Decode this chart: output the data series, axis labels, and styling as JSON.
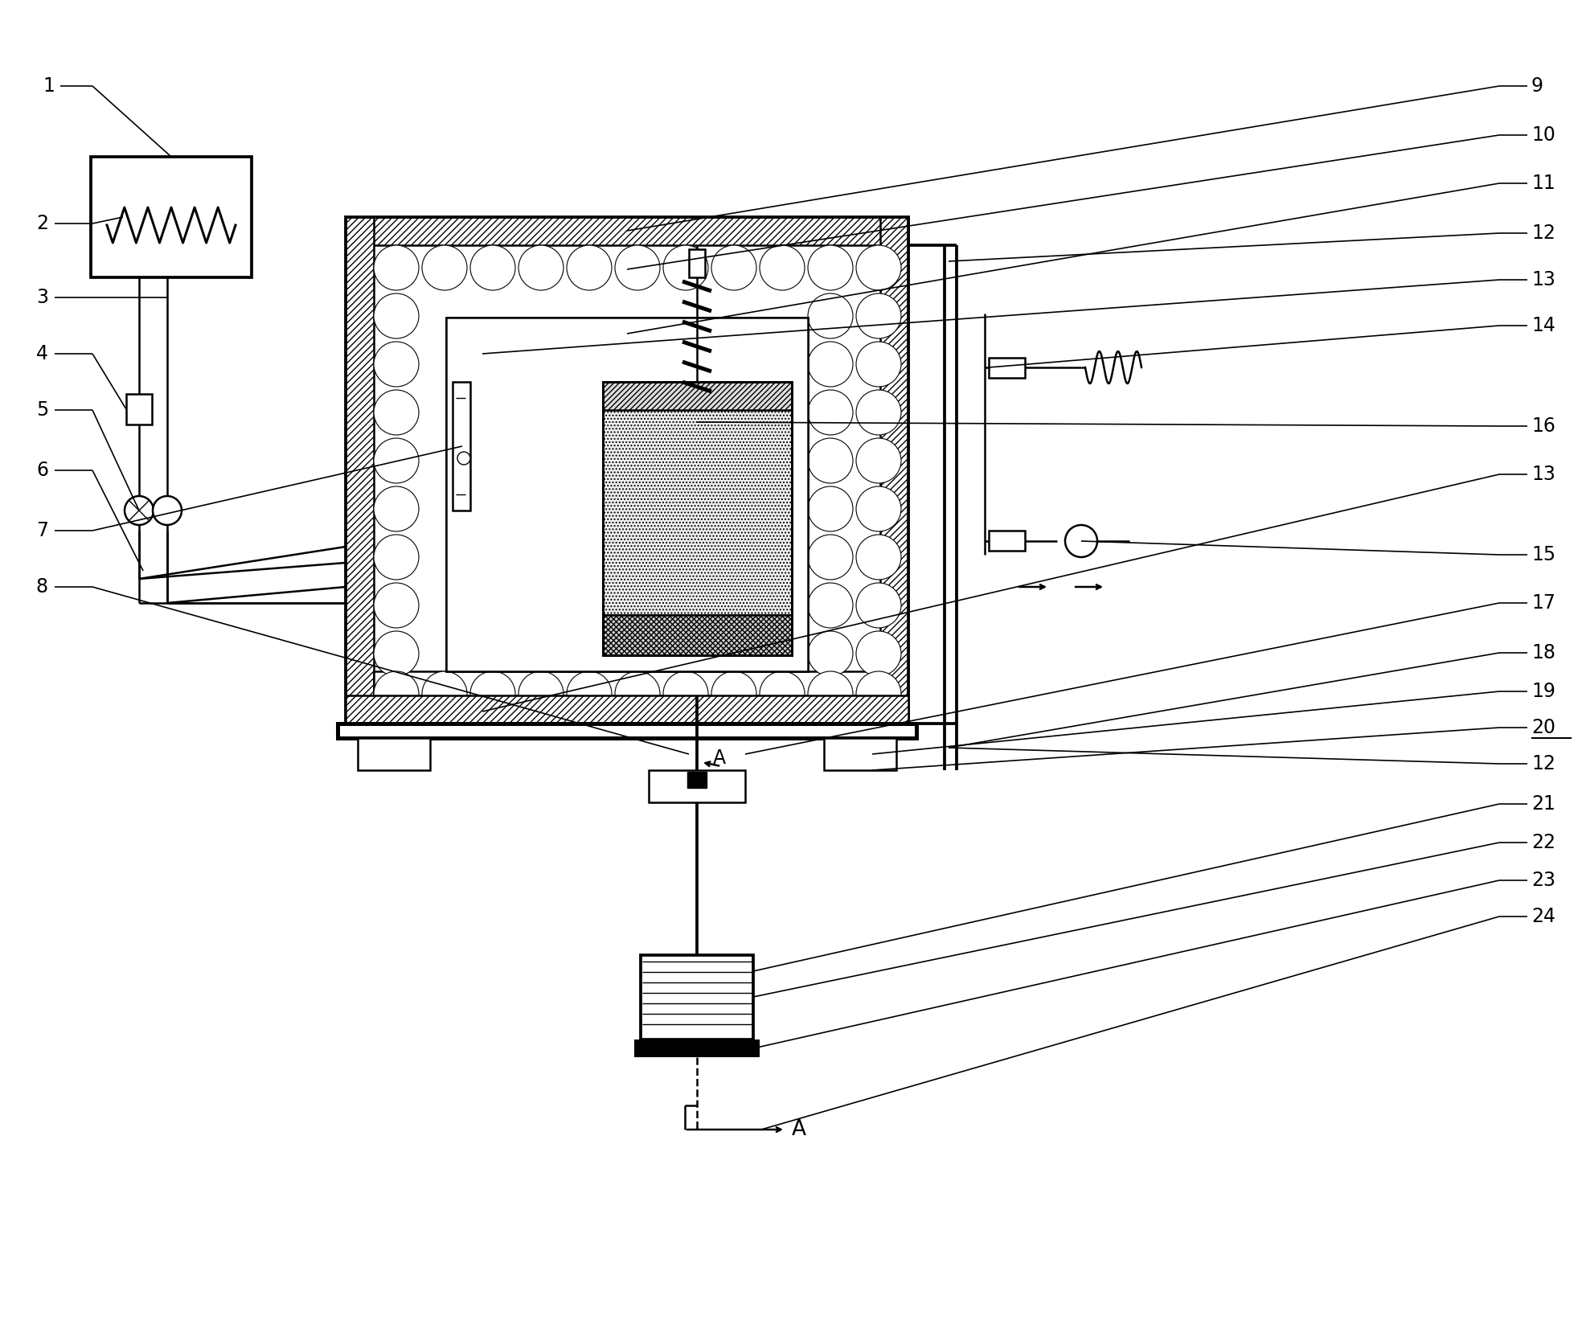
{
  "fig_width": 19.68,
  "fig_height": 16.68,
  "dpi": 100,
  "bg": "#ffffff",
  "lc": "#000000",
  "lw": 1.8,
  "fs": 17
}
